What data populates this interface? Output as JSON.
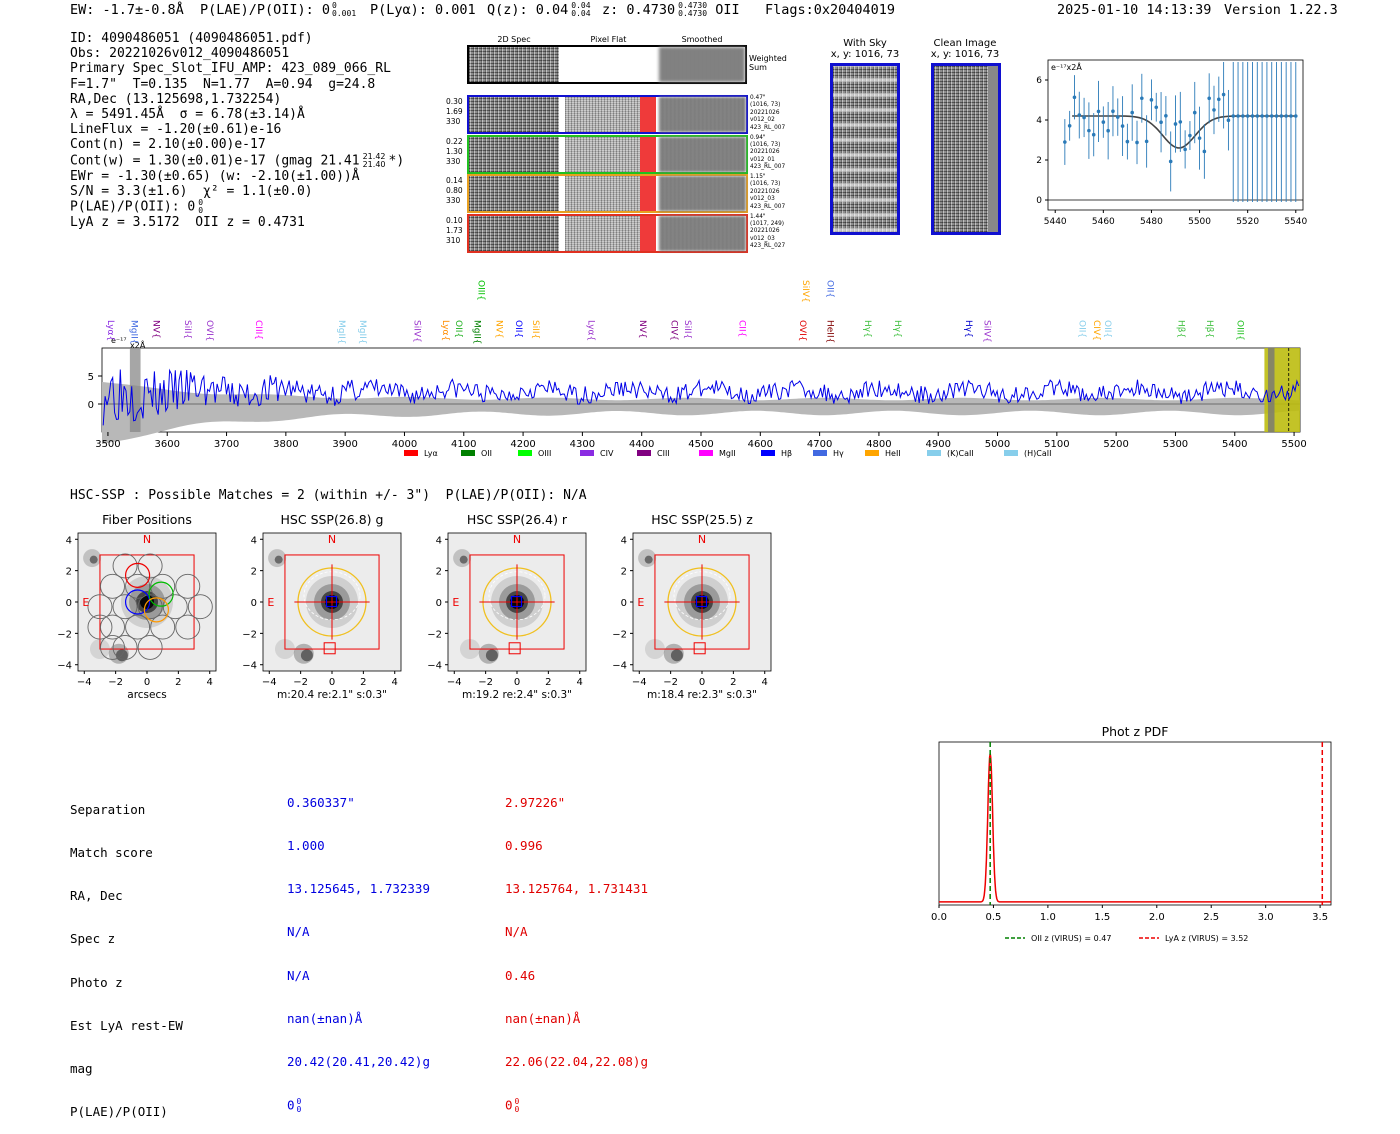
{
  "header": {
    "ew": "EW: -1.7±-0.8Å",
    "plae": "P(LAE)/P(OII): 0",
    "plae_sup": "0",
    "plae_sub": "0.001",
    "plya": "P(Lyα): 0.001",
    "qz": "Q(z): 0.04",
    "qz_sup": "0.04",
    "qz_sub": "0.04",
    "z": "z: 0.4730",
    "z_sup": "0.4730",
    "z_sub": "0.4730",
    "z_line": "OII",
    "flags": "Flags:0x20404019",
    "datetime": "2025-01-10 14:13:39",
    "version": "Version 1.22.3"
  },
  "info": {
    "lines": [
      "ID: 4090486051 (4090486051.pdf)",
      "Obs: 20221026v012_4090486051",
      "Primary Spec_Slot_IFU_AMP: 423_089_066_RL",
      "F=1.7\"  T=0.135  N=1.77  A=0.94  g=24.8",
      "RA,Dec (13.125698,1.732254)",
      "λ = 5491.45Å  σ = 6.78(±3.14)Å",
      "LineFlux = -1.20(±0.61)e-16",
      "Cont(n) = 2.10(±0.00)e-17",
      "Cont(w) = 1.30(±0.01)e-17 (gmag 21.41",
      "EWr = -1.30(±0.65) (w: -2.10(±1.00))Å",
      "S/N = 3.3(±1.6)  χ² = 1.1(±0.0)",
      "P(LAE)/P(OII): 0",
      "LyA z = 3.5172  OII z = 0.4731"
    ],
    "gmag_sup": "21.42",
    "gmag_sub": "21.40",
    "gmag_end": "*)",
    "plae_sup": "0",
    "plae_sub": "0"
  },
  "cutouts": {
    "col_labels": [
      "2D Spec",
      "Pixel Flat",
      "Smoothed"
    ],
    "weighted_sum": "Weighted\nSum",
    "rows": [
      {
        "left": [
          "0.30",
          "1.69",
          "330"
        ],
        "right": [
          "0.47\"",
          "(1016, 73)",
          "20221026",
          "v012_02",
          "423_RL_007"
        ],
        "color": "#1010d0"
      },
      {
        "left": [
          "0.22",
          "1.30",
          "330"
        ],
        "right": [
          "0.94\"",
          "(1016, 73)",
          "20221026",
          "v012_01",
          "423_RL_007"
        ],
        "color": "#20c020"
      },
      {
        "left": [
          "0.14",
          "0.80",
          "330"
        ],
        "right": [
          "1.15\"",
          "(1016, 73)",
          "20221026",
          "v012_03",
          "423_RL_007"
        ],
        "color": "#e8a020"
      },
      {
        "left": [
          "0.10",
          "1.73",
          "310"
        ],
        "right": [
          "1.44\"",
          "(1017, 249)",
          "20221026",
          "v012_03",
          "423_RL_027"
        ],
        "color": "#e03020"
      }
    ]
  },
  "with_sky": {
    "title": "With Sky",
    "sub": "x, y: 1016, 73"
  },
  "clean_image": {
    "title": "Clean Image",
    "sub": "x, y: 1016, 73"
  },
  "line_fit_chart": {
    "unit": "e⁻¹⁷x2Å",
    "xticks": [
      "5440",
      "5460",
      "5480",
      "5500",
      "5520",
      "5540"
    ],
    "yticks": [
      "0",
      "2",
      "4",
      "6"
    ]
  },
  "spectrum": {
    "unit": "e⁻¹⁷",
    "unit2": "x2Å",
    "yticks": [
      "5",
      "0"
    ],
    "xticks": [
      "3500",
      "3600",
      "3700",
      "3800",
      "3900",
      "4000",
      "4100",
      "4200",
      "4300",
      "4400",
      "4500",
      "4600",
      "4700",
      "4800",
      "4900",
      "5000",
      "5100",
      "5200",
      "5300",
      "5400",
      "5500"
    ],
    "line_labels": [
      {
        "t": "Lyα",
        "c": "#8a2be2",
        "w": 3505
      },
      {
        "t": "MgII",
        "c": "#4169e1",
        "w": 3545
      },
      {
        "t": "NV",
        "c": "#800080",
        "w": 3582
      },
      {
        "t": "SiII",
        "c": "#9932cc",
        "w": 3635
      },
      {
        "t": "OVI",
        "c": "#9932cc",
        "w": 3672
      },
      {
        "t": "CIII",
        "c": "#ff00ff",
        "w": 3755
      },
      {
        "t": "MgII",
        "c": "#87ceeb",
        "w": 3895
      },
      {
        "t": "MgII",
        "c": "#87ceeb",
        "w": 3930
      },
      {
        "t": "SiIV",
        "c": "#9932cc",
        "w": 4022
      },
      {
        "t": "Lyα",
        "c": "#ff8c00",
        "w": 4070
      },
      {
        "t": "OII",
        "c": "#20b020",
        "w": 4092
      },
      {
        "t": "MgII",
        "c": "#008000",
        "w": 4123
      },
      {
        "t": "NV",
        "c": "#ffa500",
        "w": 4160
      },
      {
        "t": "OII",
        "c": "#0000ff",
        "w": 4193
      },
      {
        "t": "SiII",
        "c": "#ffa500",
        "w": 4222
      },
      {
        "t": "Lyα",
        "c": "#9932cc",
        "w": 4315
      },
      {
        "t": "NV",
        "c": "#800080",
        "w": 4402
      },
      {
        "t": "CIV",
        "c": "#800080",
        "w": 4455
      },
      {
        "t": "SiII",
        "c": "#9932cc",
        "w": 4478
      },
      {
        "t": "CII",
        "c": "#ff00ff",
        "w": 4570
      },
      {
        "t": "OVI",
        "c": "#e00000",
        "w": 4672
      },
      {
        "t": "HeII",
        "c": "#800000",
        "w": 4718
      },
      {
        "t": "Hγ",
        "c": "#40c040",
        "w": 4782
      },
      {
        "t": "Hγ",
        "c": "#40c040",
        "w": 4832
      },
      {
        "t": "Hγ",
        "c": "#0000cd",
        "w": 4952
      },
      {
        "t": "SiIV",
        "c": "#9932cc",
        "w": 4983
      },
      {
        "t": "OII",
        "c": "#87ceeb",
        "w": 5143
      },
      {
        "t": "CIV",
        "c": "#ffa500",
        "w": 5168
      },
      {
        "t": "OII",
        "c": "#87ceeb",
        "w": 5186
      },
      {
        "t": "Hβ",
        "c": "#40c040",
        "w": 5310
      },
      {
        "t": "Hβ",
        "c": "#40c040",
        "w": 5358
      },
      {
        "t": "OIII",
        "c": "#20c020",
        "w": 5410
      }
    ],
    "high_labels": [
      {
        "t": "OIII",
        "c": "#00c000",
        "w": 4130
      },
      {
        "t": "SiIV",
        "c": "#ffa500",
        "w": 4677
      },
      {
        "t": "OII",
        "c": "#4169e1",
        "w": 4718
      }
    ],
    "legend": [
      {
        "t": "Lyα",
        "c": "#ff0000"
      },
      {
        "t": "OII",
        "c": "#008000"
      },
      {
        "t": "OIII",
        "c": "#00ff00"
      },
      {
        "t": "CIV",
        "c": "#8a2be2"
      },
      {
        "t": "CIII",
        "c": "#800080"
      },
      {
        "t": "MgII",
        "c": "#ff00ff"
      },
      {
        "t": "Hβ",
        "c": "#0000ff"
      },
      {
        "t": "Hγ",
        "c": "#4169e1"
      },
      {
        "t": "HeII",
        "c": "#ffa500"
      },
      {
        "t": "(K)CaII",
        "c": "#87ceeb"
      },
      {
        "t": "(H)CaII",
        "c": "#87ceeb"
      }
    ]
  },
  "hsc": {
    "summary": "HSC-SSP : Possible Matches = 2 (within +/- 3\")  P(LAE)/P(OII): N/A",
    "panels": [
      {
        "title": "Fiber Positions",
        "caption": "arcsecs",
        "n": "N",
        "e": "E"
      },
      {
        "title": "HSC SSP(26.8) g",
        "caption": "m:20.4  re:2.1\"  s:0.3\"",
        "n": "N",
        "e": "E"
      },
      {
        "title": "HSC SSP(26.4) r",
        "caption": "m:19.2  re:2.4\"  s:0.3\"",
        "n": "N",
        "e": "E"
      },
      {
        "title": "HSC SSP(25.5) z",
        "caption": "m:18.4  re:2.3\"  s:0.3\"",
        "n": "N",
        "e": "E"
      }
    ],
    "ticks": [
      "−4",
      "−2",
      "0",
      "2",
      "4"
    ],
    "yticks": [
      "4",
      "2",
      "0",
      "−2",
      "−4"
    ]
  },
  "match_table": {
    "labels": [
      "Separation",
      "Match score",
      "RA, Dec",
      "Spec z",
      "Photo z",
      "Est LyA rest-EW",
      "mag",
      "P(LAE)/P(OII)"
    ],
    "col1": [
      "0.360337\"",
      "1.000",
      "13.125645, 1.732339",
      "N/A",
      "N/A",
      "nan(±nan)Å",
      "20.42(20.41,20.42)g",
      "0"
    ],
    "col2": [
      "2.97226\"",
      "0.996",
      "13.125764, 1.731431",
      "N/A",
      "0.46",
      "nan(±nan)Å",
      "22.06(22.04,22.08)g",
      "0"
    ],
    "col1_sup": "0",
    "col1_sub": "0",
    "col2_sup": "0",
    "col2_sub": "0"
  },
  "photz": {
    "title": "Phot z PDF",
    "xticks": [
      "0.0",
      "0.5",
      "1.0",
      "1.5",
      "2.0",
      "2.5",
      "3.0",
      "3.5"
    ],
    "legend_oii": "OII z (VIRUS) = 0.47",
    "legend_lya": "LyA z (VIRUS) = 3.52",
    "oii_z": 0.47,
    "lya_z": 3.52
  }
}
